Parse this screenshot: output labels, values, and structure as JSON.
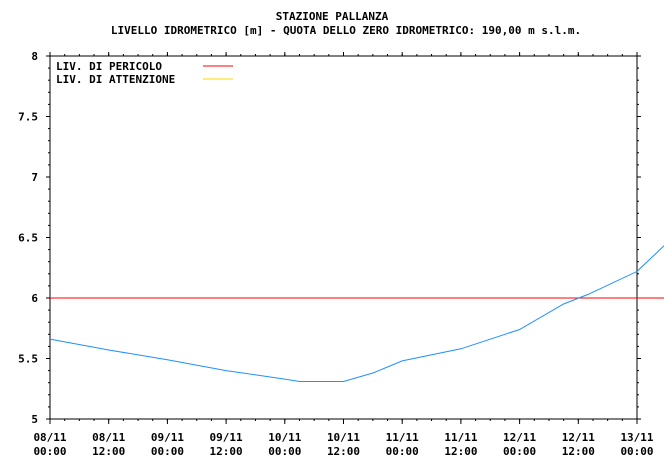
{
  "chart_data": {
    "type": "line",
    "title": "STAZIONE PALLANZA",
    "subtitle": "LIVELLO IDROMETRICO [m] - QUOTA DELLO ZERO IDROMETRICO: 190,00  m s.l.m.",
    "xlabel": "",
    "ylabel": "",
    "ylim": [
      5,
      8
    ],
    "yticks": [
      "5",
      "5.5",
      "6",
      "6.5",
      "7",
      "7.5",
      "8"
    ],
    "xticks": [
      {
        "date": "08/11",
        "time": "00:00"
      },
      {
        "date": "08/11",
        "time": "12:00"
      },
      {
        "date": "09/11",
        "time": "00:00"
      },
      {
        "date": "09/11",
        "time": "12:00"
      },
      {
        "date": "10/11",
        "time": "00:00"
      },
      {
        "date": "10/11",
        "time": "12:00"
      },
      {
        "date": "11/11",
        "time": "00:00"
      },
      {
        "date": "11/11",
        "time": "12:00"
      },
      {
        "date": "12/11",
        "time": "00:00"
      },
      {
        "date": "12/11",
        "time": "12:00"
      },
      {
        "date": "13/11",
        "time": "00:00"
      }
    ],
    "legend": [
      {
        "label": "LIV. DI PERICOLO",
        "color": "#ff0000"
      },
      {
        "label": "LIV. DI ATTENZIONE",
        "color": "#ffd700"
      }
    ],
    "legend_position": "top-left",
    "thresholds": [
      {
        "name": "LIV. DI PERICOLO",
        "value": 6.0,
        "color": "#ff0000"
      }
    ],
    "series": [
      {
        "color": "#1e90ff",
        "x_hours": [
          0,
          12,
          24,
          36,
          48,
          51,
          60,
          66,
          72,
          84,
          96,
          105,
          110,
          120,
          126,
          132
        ],
        "y": [
          5.66,
          5.57,
          5.49,
          5.4,
          5.33,
          5.31,
          5.31,
          5.38,
          5.48,
          5.58,
          5.74,
          5.95,
          6.03,
          6.22,
          6.45,
          6.7
        ]
      }
    ]
  }
}
